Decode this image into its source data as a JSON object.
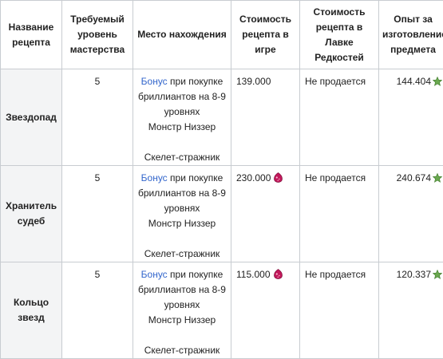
{
  "table": {
    "headers": [
      "Название рецепта",
      "Требуемый уровень мастерства",
      "Место нахождения",
      "Стоимость рецепта в игре",
      "Стоимость рецепта в Лавке Редкостей",
      "Опыт за изготовление предмета"
    ],
    "rows": [
      {
        "name": "Звездопад",
        "level": "5",
        "bonus_link": "Бонус",
        "bonus_text": " при покупке бриллиантов на 8-9 уровнях",
        "source_1": "Монстр Низзер",
        "source_2": "Скелет-стражник",
        "price": "139.000",
        "shop": "Не продается",
        "exp": "144.404"
      },
      {
        "name": "Хранитель судеб",
        "level": "5",
        "bonus_link": "Бонус",
        "bonus_text": " при покупке бриллиантов на 8-9 уровнях",
        "source_1": "Монстр Низзер",
        "source_2": "Скелет-стражник",
        "price": "230.000",
        "shop": "Не продается",
        "exp": "240.674"
      },
      {
        "name": "Кольцо звезд",
        "level": "5",
        "bonus_link": "Бонус",
        "bonus_text": " при покупке бриллиантов на 8-9 уровнях",
        "source_1": "Монстр Низзер",
        "source_2": "Скелет-стражник",
        "price": "115.000",
        "shop": "Не продается",
        "exp": "120.337"
      }
    ]
  },
  "icons": {
    "price_icon": "gem-icon",
    "exp_icon": "star-icon",
    "gem_color": "#c2185b",
    "star_color": "#6aa84f",
    "link_color": "#3366cc"
  }
}
